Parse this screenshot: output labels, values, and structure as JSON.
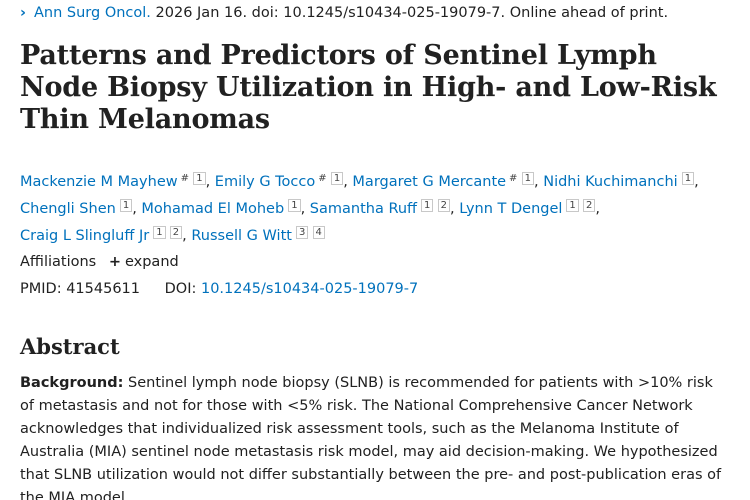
{
  "citation": {
    "journal": "Ann Surg Oncol.",
    "details": "2026 Jan 16. doi: 10.1245/s10434-025-19079-7. Online ahead of print."
  },
  "article": {
    "title": "Patterns and Predictors of Sentinel Lymph Node Biopsy Utilization in High- and Low-Risk Thin Melanomas"
  },
  "authors": [
    {
      "name": "Mackenzie M Mayhew",
      "marks": [
        "#",
        "1"
      ]
    },
    {
      "name": "Emily G Tocco",
      "marks": [
        "#",
        "1"
      ]
    },
    {
      "name": "Margaret G Mercante",
      "marks": [
        "#",
        "1"
      ]
    },
    {
      "name": "Nidhi Kuchimanchi",
      "marks": [
        "1"
      ]
    },
    {
      "name": "Chengli Shen",
      "marks": [
        "1"
      ]
    },
    {
      "name": "Mohamad El Moheb",
      "marks": [
        "1"
      ]
    },
    {
      "name": "Samantha Ruff",
      "marks": [
        "1",
        "2"
      ]
    },
    {
      "name": "Lynn T Dengel",
      "marks": [
        "1",
        "2"
      ]
    },
    {
      "name": "Craig L Slingluff Jr",
      "marks": [
        "1",
        "2"
      ]
    },
    {
      "name": "Russell G Witt",
      "marks": [
        "3",
        "4"
      ]
    }
  ],
  "affiliations": {
    "label": "Affiliations",
    "expand_label": "expand"
  },
  "identifiers": {
    "pmid_label": "PMID:",
    "pmid": "41545611",
    "doi_label": "DOI:",
    "doi": "10.1245/s10434-025-19079-7"
  },
  "abstract": {
    "heading": "Abstract",
    "background_label": "Background:",
    "background_text": "Sentinel lymph node biopsy (SLNB) is recommended for patients with >10% risk of metastasis and not for those with <5% risk. The National Comprehensive Cancer Network acknowledges that individualized risk assessment tools, such as the Melanoma Institute of Australia (MIA) sentinel node metastasis risk model, may aid decision-making. We hypothesized that SLNB utilization would not differ substantially between the pre- and post-publication eras of the MIA model."
  }
}
